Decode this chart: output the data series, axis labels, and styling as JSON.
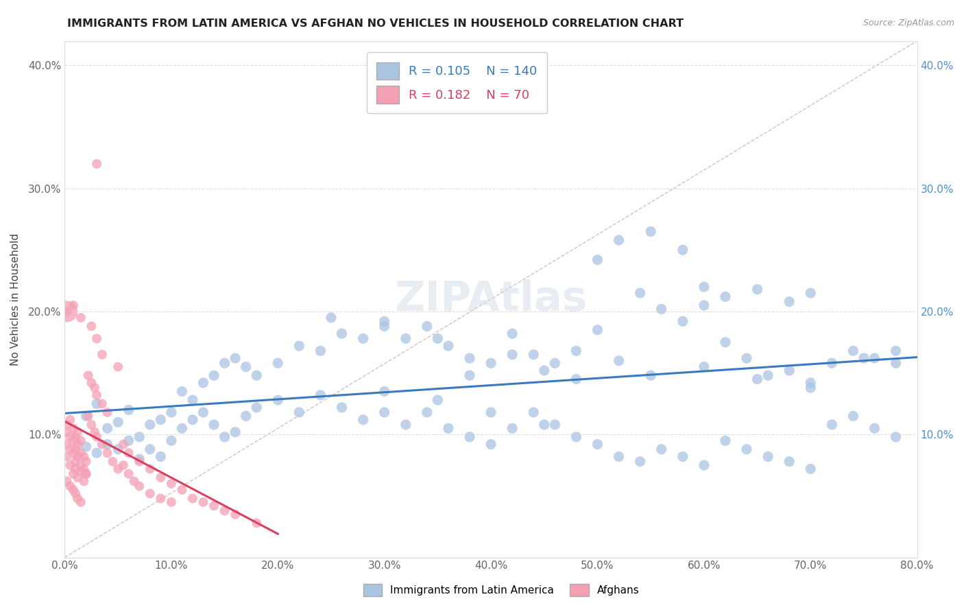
{
  "title": "IMMIGRANTS FROM LATIN AMERICA VS AFGHAN NO VEHICLES IN HOUSEHOLD CORRELATION CHART",
  "source": "Source: ZipAtlas.com",
  "ylabel": "No Vehicles in Household",
  "xlim": [
    0.0,
    0.8
  ],
  "ylim": [
    0.0,
    0.42
  ],
  "xticks": [
    0.0,
    0.1,
    0.2,
    0.3,
    0.4,
    0.5,
    0.6,
    0.7,
    0.8
  ],
  "yticks": [
    0.0,
    0.1,
    0.2,
    0.3,
    0.4
  ],
  "xtick_labels": [
    "0.0%",
    "10.0%",
    "20.0%",
    "30.0%",
    "40.0%",
    "50.0%",
    "60.0%",
    "70.0%",
    "80.0%"
  ],
  "ytick_labels": [
    "",
    "10.0%",
    "20.0%",
    "30.0%",
    "40.0%"
  ],
  "blue_R": "0.105",
  "blue_N": "140",
  "pink_R": "0.182",
  "pink_N": "70",
  "blue_color": "#aac4e2",
  "pink_color": "#f4a0b4",
  "blue_line_color": "#3a7abf",
  "pink_line_color": "#d94060",
  "diag_line_color": "#c8b0c0",
  "legend_label_blue": "Immigrants from Latin America",
  "legend_label_pink": "Afghans",
  "blue_scatter_x": [
    0.02,
    0.03,
    0.04,
    0.05,
    0.06,
    0.07,
    0.08,
    0.09,
    0.1,
    0.02,
    0.03,
    0.04,
    0.05,
    0.06,
    0.07,
    0.08,
    0.09,
    0.1,
    0.11,
    0.12,
    0.13,
    0.14,
    0.15,
    0.16,
    0.17,
    0.18,
    0.11,
    0.12,
    0.13,
    0.14,
    0.15,
    0.16,
    0.17,
    0.18,
    0.2,
    0.22,
    0.24,
    0.26,
    0.28,
    0.3,
    0.2,
    0.22,
    0.24,
    0.26,
    0.28,
    0.3,
    0.32,
    0.34,
    0.36,
    0.38,
    0.4,
    0.32,
    0.34,
    0.36,
    0.38,
    0.4,
    0.42,
    0.44,
    0.46,
    0.48,
    0.5,
    0.42,
    0.44,
    0.46,
    0.48,
    0.5,
    0.52,
    0.54,
    0.56,
    0.58,
    0.6,
    0.52,
    0.54,
    0.56,
    0.58,
    0.6,
    0.62,
    0.64,
    0.66,
    0.68,
    0.7,
    0.62,
    0.64,
    0.66,
    0.68,
    0.7,
    0.72,
    0.74,
    0.76,
    0.78,
    0.72,
    0.74,
    0.76,
    0.78,
    0.5,
    0.52,
    0.55,
    0.58,
    0.38,
    0.42,
    0.45,
    0.48,
    0.6,
    0.62,
    0.65,
    0.68,
    0.7,
    0.3,
    0.35,
    0.4,
    0.45,
    0.25,
    0.3,
    0.35,
    0.55,
    0.6,
    0.65,
    0.7,
    0.75,
    0.78
  ],
  "blue_scatter_y": [
    0.115,
    0.125,
    0.105,
    0.11,
    0.12,
    0.098,
    0.108,
    0.112,
    0.118,
    0.09,
    0.085,
    0.092,
    0.088,
    0.095,
    0.08,
    0.088,
    0.082,
    0.095,
    0.135,
    0.128,
    0.142,
    0.148,
    0.158,
    0.162,
    0.155,
    0.148,
    0.105,
    0.112,
    0.118,
    0.108,
    0.098,
    0.102,
    0.115,
    0.122,
    0.158,
    0.172,
    0.168,
    0.182,
    0.178,
    0.192,
    0.128,
    0.118,
    0.132,
    0.122,
    0.112,
    0.118,
    0.178,
    0.188,
    0.172,
    0.162,
    0.158,
    0.108,
    0.118,
    0.105,
    0.098,
    0.092,
    0.182,
    0.165,
    0.158,
    0.168,
    0.185,
    0.105,
    0.118,
    0.108,
    0.098,
    0.092,
    0.16,
    0.215,
    0.202,
    0.192,
    0.205,
    0.082,
    0.078,
    0.088,
    0.082,
    0.075,
    0.175,
    0.162,
    0.148,
    0.152,
    0.142,
    0.095,
    0.088,
    0.082,
    0.078,
    0.072,
    0.158,
    0.168,
    0.162,
    0.158,
    0.108,
    0.115,
    0.105,
    0.098,
    0.242,
    0.258,
    0.265,
    0.25,
    0.148,
    0.165,
    0.152,
    0.145,
    0.22,
    0.212,
    0.218,
    0.208,
    0.215,
    0.135,
    0.128,
    0.118,
    0.108,
    0.195,
    0.188,
    0.178,
    0.148,
    0.155,
    0.145,
    0.138,
    0.162,
    0.168
  ],
  "pink_scatter_x": [
    0.002,
    0.005,
    0.008,
    0.01,
    0.012,
    0.015,
    0.018,
    0.02,
    0.002,
    0.005,
    0.008,
    0.01,
    0.012,
    0.015,
    0.018,
    0.02,
    0.002,
    0.005,
    0.008,
    0.01,
    0.012,
    0.015,
    0.018,
    0.02,
    0.002,
    0.005,
    0.008,
    0.01,
    0.012,
    0.015,
    0.002,
    0.005,
    0.008,
    0.01,
    0.012,
    0.015,
    0.022,
    0.025,
    0.028,
    0.03,
    0.035,
    0.04,
    0.045,
    0.05,
    0.022,
    0.025,
    0.028,
    0.03,
    0.035,
    0.04,
    0.055,
    0.06,
    0.065,
    0.07,
    0.08,
    0.09,
    0.1,
    0.055,
    0.06,
    0.07,
    0.08,
    0.09,
    0.1,
    0.11,
    0.12,
    0.13,
    0.14,
    0.15,
    0.16,
    0.18,
    0.002,
    0.008,
    0.015,
    0.025,
    0.035,
    0.05,
    0.03
  ],
  "pink_scatter_y": [
    0.082,
    0.075,
    0.068,
    0.072,
    0.065,
    0.07,
    0.062,
    0.068,
    0.092,
    0.088,
    0.085,
    0.078,
    0.082,
    0.075,
    0.072,
    0.068,
    0.102,
    0.098,
    0.095,
    0.088,
    0.092,
    0.085,
    0.082,
    0.078,
    0.108,
    0.112,
    0.105,
    0.098,
    0.102,
    0.095,
    0.062,
    0.058,
    0.055,
    0.052,
    0.048,
    0.045,
    0.115,
    0.108,
    0.102,
    0.098,
    0.092,
    0.085,
    0.078,
    0.072,
    0.148,
    0.142,
    0.138,
    0.132,
    0.125,
    0.118,
    0.075,
    0.068,
    0.062,
    0.058,
    0.052,
    0.048,
    0.045,
    0.092,
    0.085,
    0.078,
    0.072,
    0.065,
    0.06,
    0.055,
    0.048,
    0.045,
    0.042,
    0.038,
    0.035,
    0.028,
    0.2,
    0.205,
    0.195,
    0.188,
    0.165,
    0.155,
    0.178
  ],
  "pink_big_x": [
    0.002
  ],
  "pink_big_y": [
    0.2
  ],
  "pink_outlier_x": [
    0.03
  ],
  "pink_outlier_y": [
    0.32
  ]
}
